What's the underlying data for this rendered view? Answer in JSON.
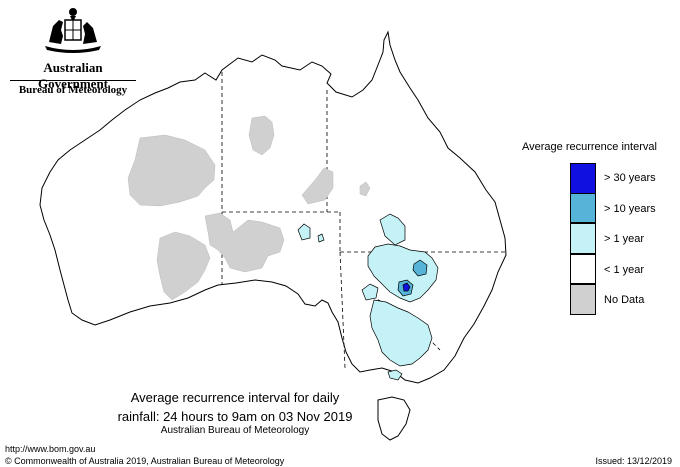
{
  "header": {
    "government": "Australian Government",
    "bureau": "Bureau of Meteorology"
  },
  "map_title": {
    "line1": "Average recurrence interval for daily",
    "line2": "rainfall: 24 hours to 9am on 03 Nov 2019",
    "credit": "Australian Bureau of Meteorology"
  },
  "legend": {
    "title": "Average recurrence interval",
    "items": [
      {
        "label": "> 30 years",
        "color": "#1010e0"
      },
      {
        "label": "> 10 years",
        "color": "#55b4d8"
      },
      {
        "label": "> 1 year",
        "color": "#c4f2f6"
      },
      {
        "label": "< 1 year",
        "color": "#ffffff"
      },
      {
        "label": "No Data",
        "color": "#d0d0d0"
      }
    ]
  },
  "footer": {
    "url": "http://www.bom.gov.au",
    "copyright": "© Commonwealth of Australia 2019, Australian Bureau of Meteorology",
    "issued": "Issued: 13/12/2019"
  }
}
